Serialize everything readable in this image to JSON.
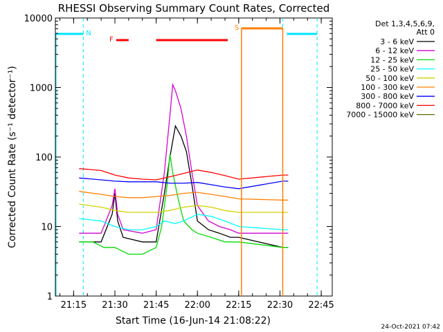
{
  "chart_data": {
    "type": "line",
    "title": "RHESSI Observing Summary Count Rates, Corrected",
    "xlabel": "Start Time (16-Jun-14 21:08:22)",
    "ylabel": "Corrected Count Rate (s⁻¹ detector⁻¹)",
    "y_scale": "log",
    "ylim": [
      1,
      10000
    ],
    "xlim": [
      "21:08:22",
      "22:49:00"
    ],
    "yticks": [
      {
        "value": 1,
        "label": "1"
      },
      {
        "value": 10,
        "label": "10"
      },
      {
        "value": 100,
        "label": "100"
      },
      {
        "value": 1000,
        "label": "1000"
      },
      {
        "value": 10000,
        "label": "10000"
      }
    ],
    "xticks": [
      {
        "value": "21:15",
        "label": "21:15"
      },
      {
        "value": "21:30",
        "label": "21:30"
      },
      {
        "value": "21:45",
        "label": "21:45"
      },
      {
        "value": "22:00",
        "label": "22:00"
      },
      {
        "value": "22:15",
        "label": "22:15"
      },
      {
        "value": "22:30",
        "label": "22:30"
      },
      {
        "value": "22:45",
        "label": "22:45"
      }
    ],
    "legend_header": [
      "Det 1,3,4,5,6,9,",
      "Att 0"
    ],
    "legend_position": "right",
    "timestamp": "24-Oct-2021 07:42",
    "flags": [
      {
        "label": "N",
        "color": "#00e5ff",
        "segments": [
          [
            "21:08:22",
            "21:18:30"
          ],
          [
            "22:32:30",
            "22:43:30"
          ]
        ]
      },
      {
        "label": "F",
        "color": "#ff0000",
        "segments": [
          [
            "21:30:30",
            "21:35:00"
          ],
          [
            "21:45:00",
            "22:11:00"
          ]
        ]
      },
      {
        "label": "S",
        "color": "#ff8000",
        "segments": [
          [
            "22:16:00",
            "22:31:00"
          ]
        ]
      }
    ],
    "dashed_lines": [
      "21:18:30",
      "22:31:00",
      "22:43:30"
    ],
    "series": [
      {
        "name": "3 - 6 keV",
        "color": "#000000",
        "x": [
          "21:17",
          "21:25",
          "21:29",
          "21:30",
          "21:31",
          "21:33",
          "21:40",
          "21:45",
          "21:48",
          "21:50",
          "21:52",
          "21:54",
          "21:56",
          "21:58",
          "22:00",
          "22:04",
          "22:08",
          "22:12",
          "22:15",
          "22:31",
          "22:32",
          "22:33"
        ],
        "values": [
          6,
          6,
          15,
          30,
          12,
          7,
          6,
          6,
          30,
          100,
          280,
          200,
          120,
          40,
          12,
          9,
          8,
          7,
          7,
          5,
          5,
          5
        ]
      },
      {
        "name": "6 - 12 keV",
        "color": "#d400d4",
        "x": [
          "21:17",
          "21:25",
          "21:29",
          "21:30",
          "21:31",
          "21:33",
          "21:40",
          "21:45",
          "21:48",
          "21:50",
          "21:51",
          "21:52",
          "21:54",
          "21:56",
          "21:58",
          "22:00",
          "22:04",
          "22:08",
          "22:12",
          "22:15",
          "22:31",
          "22:32",
          "22:33"
        ],
        "values": [
          8,
          8,
          20,
          35,
          15,
          9,
          8,
          9,
          60,
          400,
          1100,
          900,
          500,
          200,
          60,
          20,
          12,
          10,
          9,
          8,
          8,
          8,
          8
        ]
      },
      {
        "name": "12 - 25 keV",
        "color": "#00dc00",
        "x": [
          "21:17",
          "21:22",
          "21:26",
          "21:30",
          "21:35",
          "21:40",
          "21:45",
          "21:47",
          "21:49",
          "21:50",
          "21:51",
          "21:53",
          "21:55",
          "21:58",
          "22:00",
          "22:05",
          "22:10",
          "22:15",
          "22:31",
          "22:32",
          "22:33"
        ],
        "values": [
          6,
          6,
          5,
          5,
          4,
          4,
          5,
          10,
          40,
          110,
          60,
          25,
          12,
          9,
          8,
          7,
          6,
          6,
          5,
          5,
          5
        ]
      },
      {
        "name": "25 - 50 keV",
        "color": "#00ffff",
        "x": [
          "21:17",
          "21:25",
          "21:30",
          "21:35",
          "21:40",
          "21:45",
          "21:48",
          "21:52",
          "21:55",
          "22:00",
          "22:05",
          "22:10",
          "22:15",
          "22:31",
          "22:32",
          "22:33"
        ],
        "values": [
          13,
          12,
          10,
          9,
          9,
          10,
          12,
          11,
          12,
          15,
          14,
          12,
          10,
          9,
          9,
          9
        ]
      },
      {
        "name": "50 - 100 keV",
        "color": "#d2d200",
        "x": [
          "21:17",
          "21:25",
          "21:30",
          "21:35",
          "21:40",
          "21:45",
          "21:50",
          "21:55",
          "22:00",
          "22:05",
          "22:10",
          "22:15",
          "22:31",
          "22:32",
          "22:33"
        ],
        "values": [
          21,
          19,
          17,
          16,
          16,
          16,
          17,
          19,
          20,
          19,
          17,
          16,
          16,
          16,
          16
        ]
      },
      {
        "name": "100 - 300 keV",
        "color": "#ff8000",
        "x": [
          "21:17",
          "21:25",
          "21:30",
          "21:35",
          "21:40",
          "21:45",
          "21:50",
          "21:55",
          "22:00",
          "22:05",
          "22:10",
          "22:15",
          "22:31",
          "22:32",
          "22:33"
        ],
        "values": [
          32,
          29,
          27,
          26,
          26,
          27,
          28,
          30,
          31,
          29,
          27,
          25,
          24,
          24,
          24
        ]
      },
      {
        "name": "300 - 800 keV",
        "color": "#0000ff",
        "x": [
          "21:17",
          "21:25",
          "21:30",
          "21:35",
          "21:40",
          "21:45",
          "21:50",
          "21:55",
          "22:00",
          "22:05",
          "22:10",
          "22:15",
          "22:31",
          "22:32",
          "22:33"
        ],
        "values": [
          50,
          47,
          45,
          44,
          44,
          44,
          42,
          42,
          43,
          40,
          37,
          35,
          45,
          45,
          45
        ]
      },
      {
        "name": "800 - 7000 keV",
        "color": "#ff0000",
        "x": [
          "21:17",
          "21:25",
          "21:30",
          "21:35",
          "21:40",
          "21:45",
          "21:50",
          "21:55",
          "22:00",
          "22:05",
          "22:10",
          "22:15",
          "22:31",
          "22:32",
          "22:33"
        ],
        "values": [
          68,
          64,
          55,
          50,
          48,
          47,
          52,
          58,
          65,
          60,
          54,
          48,
          55,
          55,
          55
        ]
      },
      {
        "name": "7000 - 15000 keV",
        "color": "#556b00",
        "x": [],
        "values": []
      }
    ]
  }
}
